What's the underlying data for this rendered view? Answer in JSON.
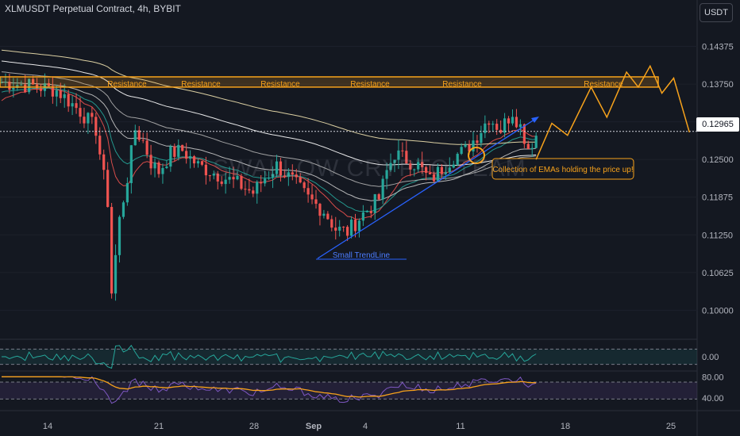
{
  "header": {
    "title": "XLMUSDT Perpetual Contract, 4h, BYBIT",
    "currency": "USDT",
    "watermark": "SWALLOW CRYPTO TEAM"
  },
  "colors": {
    "background": "#141821",
    "bull": "#26a69a",
    "bear": "#ef5350",
    "resistance": "#f7a21b",
    "trendline": "#2962ff",
    "projection": "#f7a21b"
  },
  "chart_data": [
    {
      "type": "candlestick",
      "title": "XLMUSDT Perpetual Contract, 4h, BYBIT",
      "y_axis_ticks": [
        "0.14375",
        "0.13750",
        "0.13125",
        "0.12500",
        "0.11875",
        "0.11250",
        "0.10625",
        "0.10000"
      ],
      "ylim": [
        0.0965,
        0.1475
      ],
      "x_axis_ticks": [
        "14",
        "21",
        "28",
        "Sep",
        "4",
        "11",
        "18",
        "25"
      ],
      "current_price": "0.12965",
      "price_path": [
        [
          0,
          0.1378
        ],
        [
          8,
          0.1372
        ],
        [
          14,
          0.1365
        ],
        [
          20,
          0.133
        ],
        [
          24,
          0.13
        ],
        [
          27,
          0.118
        ],
        [
          28,
          0.103
        ],
        [
          30,
          0.115
        ],
        [
          32,
          0.122
        ],
        [
          34,
          0.13
        ],
        [
          36,
          0.128
        ],
        [
          38,
          0.1245
        ],
        [
          40,
          0.123
        ],
        [
          43,
          0.126
        ],
        [
          46,
          0.1265
        ],
        [
          50,
          0.124
        ],
        [
          55,
          0.1225
        ],
        [
          60,
          0.121
        ],
        [
          64,
          0.1195
        ],
        [
          67,
          0.122
        ],
        [
          70,
          0.124
        ],
        [
          74,
          0.1215
        ],
        [
          78,
          0.1185
        ],
        [
          82,
          0.1165
        ],
        [
          85,
          0.1135
        ],
        [
          88,
          0.113
        ],
        [
          92,
          0.116
        ],
        [
          96,
          0.1185
        ],
        [
          98,
          0.123
        ],
        [
          100,
          0.126
        ],
        [
          103,
          0.125
        ],
        [
          106,
          0.124
        ],
        [
          109,
          0.1215
        ],
        [
          112,
          0.1235
        ],
        [
          115,
          0.1255
        ],
        [
          118,
          0.1265
        ],
        [
          121,
          0.129
        ],
        [
          124,
          0.132
        ],
        [
          127,
          0.13
        ],
        [
          130,
          0.133
        ],
        [
          132,
          0.1305
        ],
        [
          134,
          0.127
        ],
        [
          136,
          0.129
        ]
      ],
      "ema_lines": [
        {
          "name": "",
          "color": "#ef5350",
          "smoothing": 3
        },
        {
          "name": "",
          "color": "#26a69a",
          "smoothing": 5
        },
        {
          "name": "",
          "color": "#c9c9c9",
          "smoothing": 9
        },
        {
          "name": "",
          "color": "#b0b0b0",
          "smoothing": 15
        },
        {
          "name": "",
          "color": "#ffffff",
          "smoothing": 25
        },
        {
          "name": "",
          "color": "#f1e3b0",
          "smoothing": 40
        }
      ],
      "annotations": {
        "resistance_zone": {
          "top": 0.1387,
          "bottom": 0.137,
          "labels": [
            "Resistance",
            "Resistance",
            "Resistance",
            "Resistance",
            "Resistance",
            "Resistance"
          ]
        },
        "trendline_label": "Small TrendLine",
        "ema_note": "Collection of EMAs holding the price up!",
        "projection": [
          [
            136,
            0.125
          ],
          [
            140,
            0.131
          ],
          [
            144,
            0.129
          ],
          [
            150,
            0.137
          ],
          [
            154,
            0.132
          ],
          [
            159,
            0.1395
          ],
          [
            162,
            0.137
          ],
          [
            165,
            0.1405
          ],
          [
            168,
            0.136
          ],
          [
            171,
            0.1385
          ],
          [
            175,
            0.1295
          ]
        ]
      }
    },
    {
      "type": "line",
      "name": "oscillator",
      "ylim": [
        -0.05,
        0.05
      ],
      "tick_labels": [
        "0.00"
      ],
      "band": [
        -0.03,
        0.03
      ]
    },
    {
      "type": "line",
      "name": "rsi",
      "ylim": [
        25,
        85
      ],
      "tick_labels": [
        "80.00",
        "40.00"
      ],
      "band": [
        38,
        70
      ]
    }
  ]
}
